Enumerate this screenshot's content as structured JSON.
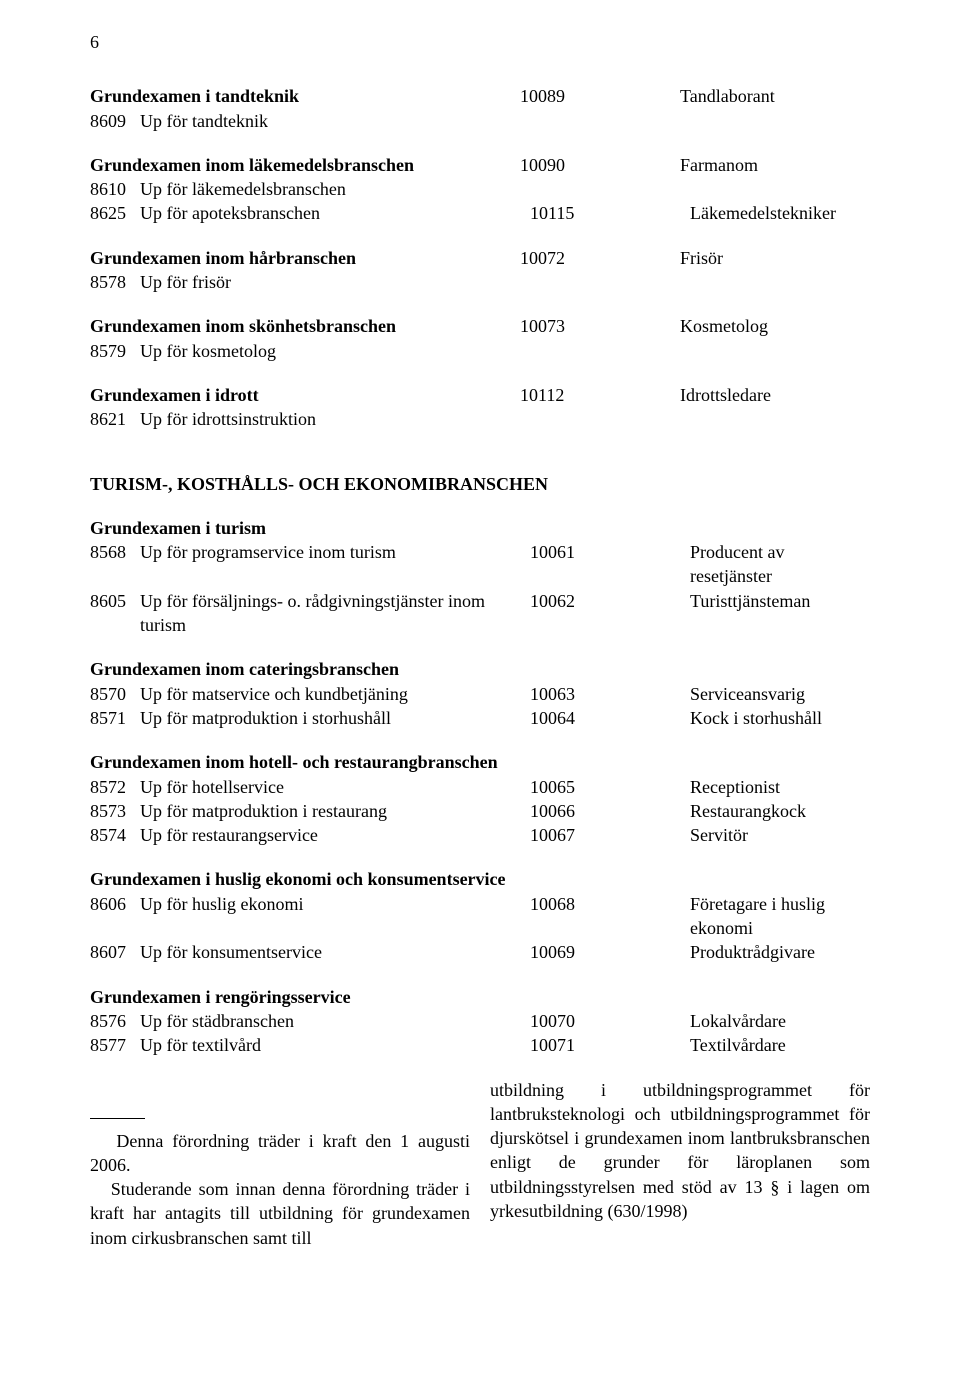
{
  "page_number": "6",
  "blocks": [
    {
      "heading": "Grundexamen i tandteknik",
      "num": "10089",
      "role": "Tandlaborant",
      "subs": [
        {
          "code": "8609",
          "text": "Up för tandteknik"
        }
      ]
    },
    {
      "heading": "Grundexamen inom läkemedelsbranschen",
      "num": "10090",
      "role": "Farmanom",
      "subs": [
        {
          "code": "8610",
          "text": "Up för läkemedelsbranschen"
        },
        {
          "code": "8625",
          "text": "Up för apoteksbranschen",
          "num": "10115",
          "role": "Läkemedelstekniker"
        }
      ]
    },
    {
      "heading": "Grundexamen inom hårbranschen",
      "num": "10072",
      "role": "Frisör",
      "subs": [
        {
          "code": "8578",
          "text": "Up för frisör"
        }
      ]
    },
    {
      "heading": "Grundexamen inom skönhetsbranschen",
      "num": "10073",
      "role": "Kosmetolog",
      "subs": [
        {
          "code": "8579",
          "text": "Up för kosmetolog"
        }
      ]
    },
    {
      "heading": "Grundexamen i idrott",
      "num": "10112",
      "role": "Idrottsledare",
      "subs": [
        {
          "code": "8621",
          "text": "Up för idrottsinstruktion"
        }
      ]
    }
  ],
  "section_title": "TURISM-, KOSTHÅLLS- OCH EKONOMIBRANSCHEN",
  "blocks2": [
    {
      "heading": "Grundexamen i turism",
      "subs": [
        {
          "code": "8568",
          "text": "Up för programservice inom turism",
          "num": "10061",
          "role": "Producent av resetjänster"
        },
        {
          "code": "8605",
          "text": "Up för försäljnings- o. rådgivningstjänster inom turism",
          "num": "10062",
          "role": "Turisttjänsteman"
        }
      ]
    },
    {
      "heading": "Grundexamen inom cateringsbranschen",
      "subs": [
        {
          "code": "8570",
          "text": "Up för matservice och kundbetjäning",
          "num": "10063",
          "role": "Serviceansvarig"
        },
        {
          "code": "8571",
          "text": "Up för matproduktion i storhushåll",
          "num": "10064",
          "role": "Kock i storhushåll"
        }
      ]
    },
    {
      "heading": "Grundexamen inom hotell- och restaurangbranschen",
      "subs": [
        {
          "code": "8572",
          "text": "Up för hotellservice",
          "num": "10065",
          "role": "Receptionist"
        },
        {
          "code": "8573",
          "text": "Up för matproduktion i restaurang",
          "num": "10066",
          "role": "Restaurangkock"
        },
        {
          "code": "8574",
          "text": "Up för restaurangservice",
          "num": "10067",
          "role": "Servitör"
        }
      ]
    },
    {
      "heading": "Grundexamen i huslig ekonomi och konsumentservice",
      "subs": [
        {
          "code": "8606",
          "text": "Up för huslig ekonomi",
          "num": "10068",
          "role": "Företagare i huslig ekonomi"
        },
        {
          "code": "8607",
          "text": "Up för konsumentservice",
          "num": "10069",
          "role": "Produktrådgivare"
        }
      ]
    },
    {
      "heading": "Grundexamen i rengöringsservice",
      "subs": [
        {
          "code": "8576",
          "text": "Up för städbranschen",
          "num": "10070",
          "role": "Lokalvårdare"
        },
        {
          "code": "8577",
          "text": "Up för textilvård",
          "num": "10071",
          "role": "Textilvårdare"
        }
      ]
    }
  ],
  "bottom": {
    "left_indent": "   Denna förordning träder i kraft den 1 augusti 2006.",
    "left2_indent": "   Studerande som innan denna förordning träder i kraft har antagits till utbildning för grundexamen inom cirkusbranschen samt till",
    "right": "utbildning i utbildningsprogrammet för lantbruksteknologi och utbildningsprogrammet för djurskötsel i grundexamen inom lantbruksbranschen enligt de grunder för läroplanen som utbildningsstyrelsen med stöd av 13 § i lagen om yrkesutbildning (630/1998)"
  }
}
